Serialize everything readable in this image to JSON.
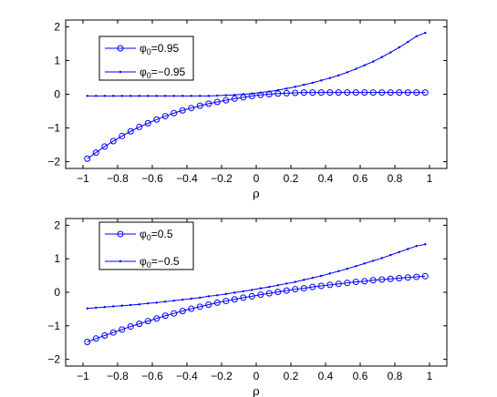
{
  "chart_data": [
    {
      "type": "line",
      "xlabel": "ρ",
      "xlim": [
        -1.1,
        1.1
      ],
      "ylim": [
        -2.2,
        2.2
      ],
      "xticks": [
        -1,
        -0.8,
        -0.6,
        -0.4,
        -0.2,
        0,
        0.2,
        0.4,
        0.6,
        0.8,
        1
      ],
      "xtick_labels": [
        "−1",
        "−0.8",
        "−0.6",
        "−0.4",
        "−0.2",
        "0",
        "0.2",
        "0.4",
        "0.6",
        "0.8",
        "1"
      ],
      "yticks": [
        -2,
        -1,
        0,
        1,
        2
      ],
      "ytick_labels": [
        "−2",
        "−1",
        "0",
        "1",
        "2"
      ],
      "legend_position": "top-left",
      "series": [
        {
          "name": "φ0=0.95",
          "legend_main": "φ",
          "legend_sub": "0",
          "legend_rest": "=0.95",
          "marker": "circle",
          "color": "#0000ff",
          "x": [
            -0.975,
            -0.925,
            -0.875,
            -0.825,
            -0.775,
            -0.725,
            -0.675,
            -0.625,
            -0.575,
            -0.525,
            -0.475,
            -0.425,
            -0.375,
            -0.325,
            -0.275,
            -0.225,
            -0.175,
            -0.125,
            -0.075,
            -0.025,
            0.025,
            0.075,
            0.125,
            0.175,
            0.225,
            0.275,
            0.325,
            0.375,
            0.425,
            0.475,
            0.525,
            0.575,
            0.625,
            0.675,
            0.725,
            0.775,
            0.825,
            0.875,
            0.925,
            0.975
          ],
          "y": [
            -1.91,
            -1.73,
            -1.55,
            -1.39,
            -1.24,
            -1.1,
            -0.97,
            -0.86,
            -0.75,
            -0.65,
            -0.56,
            -0.48,
            -0.41,
            -0.34,
            -0.28,
            -0.23,
            -0.18,
            -0.13,
            -0.09,
            -0.05,
            -0.02,
            0.0,
            0.02,
            0.03,
            0.04,
            0.05,
            0.05,
            0.05,
            0.05,
            0.05,
            0.05,
            0.05,
            0.05,
            0.05,
            0.05,
            0.05,
            0.05,
            0.05,
            0.05,
            0.05
          ]
        },
        {
          "name": "φ0=−0.95",
          "legend_main": "φ",
          "legend_sub": "0",
          "legend_rest": "=−0.95",
          "marker": "dot",
          "color": "#0000ff",
          "x": [
            -0.975,
            -0.925,
            -0.875,
            -0.825,
            -0.775,
            -0.725,
            -0.675,
            -0.625,
            -0.575,
            -0.525,
            -0.475,
            -0.425,
            -0.375,
            -0.325,
            -0.275,
            -0.225,
            -0.175,
            -0.125,
            -0.075,
            -0.025,
            0.025,
            0.075,
            0.125,
            0.175,
            0.225,
            0.275,
            0.325,
            0.375,
            0.425,
            0.475,
            0.525,
            0.575,
            0.625,
            0.675,
            0.725,
            0.775,
            0.825,
            0.875,
            0.925,
            0.975
          ],
          "y": [
            -0.05,
            -0.05,
            -0.05,
            -0.05,
            -0.05,
            -0.05,
            -0.05,
            -0.05,
            -0.05,
            -0.05,
            -0.05,
            -0.05,
            -0.05,
            -0.05,
            -0.05,
            -0.04,
            -0.03,
            -0.02,
            0.0,
            0.02,
            0.05,
            0.08,
            0.12,
            0.17,
            0.22,
            0.28,
            0.34,
            0.41,
            0.48,
            0.56,
            0.65,
            0.75,
            0.86,
            0.97,
            1.1,
            1.24,
            1.39,
            1.55,
            1.72,
            1.82
          ]
        }
      ]
    },
    {
      "type": "line",
      "xlabel": "ρ",
      "xlim": [
        -1.1,
        1.1
      ],
      "ylim": [
        -2.2,
        2.2
      ],
      "xticks": [
        -1,
        -0.8,
        -0.6,
        -0.4,
        -0.2,
        0,
        0.2,
        0.4,
        0.6,
        0.8,
        1
      ],
      "xtick_labels": [
        "−1",
        "−0.8",
        "−0.6",
        "−0.4",
        "−0.2",
        "0",
        "0.2",
        "0.4",
        "0.6",
        "0.8",
        "1"
      ],
      "yticks": [
        -2,
        -1,
        0,
        1,
        2
      ],
      "ytick_labels": [
        "−2",
        "−1",
        "0",
        "1",
        "2"
      ],
      "legend_position": "top-left",
      "series": [
        {
          "name": "φ0=0.5",
          "legend_main": "φ",
          "legend_sub": "0",
          "legend_rest": "=0.5",
          "marker": "circle",
          "color": "#0000ff",
          "x": [
            -0.975,
            -0.925,
            -0.875,
            -0.825,
            -0.775,
            -0.725,
            -0.675,
            -0.625,
            -0.575,
            -0.525,
            -0.475,
            -0.425,
            -0.375,
            -0.325,
            -0.275,
            -0.225,
            -0.175,
            -0.125,
            -0.075,
            -0.025,
            0.025,
            0.075,
            0.125,
            0.175,
            0.225,
            0.275,
            0.325,
            0.375,
            0.425,
            0.475,
            0.525,
            0.575,
            0.625,
            0.675,
            0.725,
            0.775,
            0.825,
            0.875,
            0.925,
            0.975
          ],
          "y": [
            -1.48,
            -1.38,
            -1.29,
            -1.2,
            -1.11,
            -1.02,
            -0.94,
            -0.86,
            -0.78,
            -0.7,
            -0.63,
            -0.56,
            -0.49,
            -0.43,
            -0.37,
            -0.31,
            -0.26,
            -0.21,
            -0.16,
            -0.12,
            -0.07,
            -0.03,
            0.01,
            0.05,
            0.09,
            0.12,
            0.16,
            0.19,
            0.22,
            0.25,
            0.28,
            0.31,
            0.33,
            0.36,
            0.38,
            0.4,
            0.42,
            0.44,
            0.46,
            0.48
          ]
        },
        {
          "name": "φ0=−0.5",
          "legend_main": "φ",
          "legend_sub": "0",
          "legend_rest": "=−0.5",
          "marker": "dot",
          "color": "#0000ff",
          "x": [
            -0.975,
            -0.925,
            -0.875,
            -0.825,
            -0.775,
            -0.725,
            -0.675,
            -0.625,
            -0.575,
            -0.525,
            -0.475,
            -0.425,
            -0.375,
            -0.325,
            -0.275,
            -0.225,
            -0.175,
            -0.125,
            -0.075,
            -0.025,
            0.025,
            0.075,
            0.125,
            0.175,
            0.225,
            0.275,
            0.325,
            0.375,
            0.425,
            0.475,
            0.525,
            0.575,
            0.625,
            0.675,
            0.725,
            0.775,
            0.825,
            0.875,
            0.925,
            0.975
          ],
          "y": [
            -0.48,
            -0.46,
            -0.44,
            -0.42,
            -0.4,
            -0.38,
            -0.36,
            -0.33,
            -0.31,
            -0.28,
            -0.25,
            -0.22,
            -0.19,
            -0.16,
            -0.12,
            -0.09,
            -0.05,
            -0.01,
            0.03,
            0.07,
            0.12,
            0.16,
            0.21,
            0.26,
            0.31,
            0.37,
            0.43,
            0.49,
            0.56,
            0.63,
            0.7,
            0.78,
            0.86,
            0.94,
            1.02,
            1.11,
            1.2,
            1.29,
            1.38,
            1.43
          ]
        }
      ]
    }
  ]
}
